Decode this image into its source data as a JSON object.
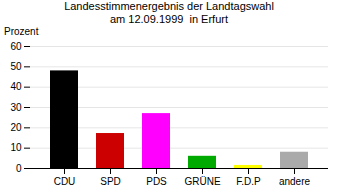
{
  "chart_data": {
    "type": "bar",
    "title": "Landesstimmenergebnis der Landtagswahl",
    "subtitle": "am 12.09.1999  in Erfurt",
    "ylabel": "Prozent",
    "categories": [
      "CDU",
      "SPD",
      "PDS",
      "GRÜNE",
      "F.D.P",
      "andere"
    ],
    "values": [
      48.0,
      17.2,
      27.0,
      6.0,
      1.5,
      8.0
    ],
    "colors": [
      "#000000",
      "#cc0000",
      "#ff00ff",
      "#00aa00",
      "#ffff00",
      "#aaaaaa"
    ],
    "ylim": [
      0,
      60
    ],
    "yticks": [
      0,
      10,
      20,
      30,
      40,
      50,
      60
    ],
    "grid": true
  }
}
